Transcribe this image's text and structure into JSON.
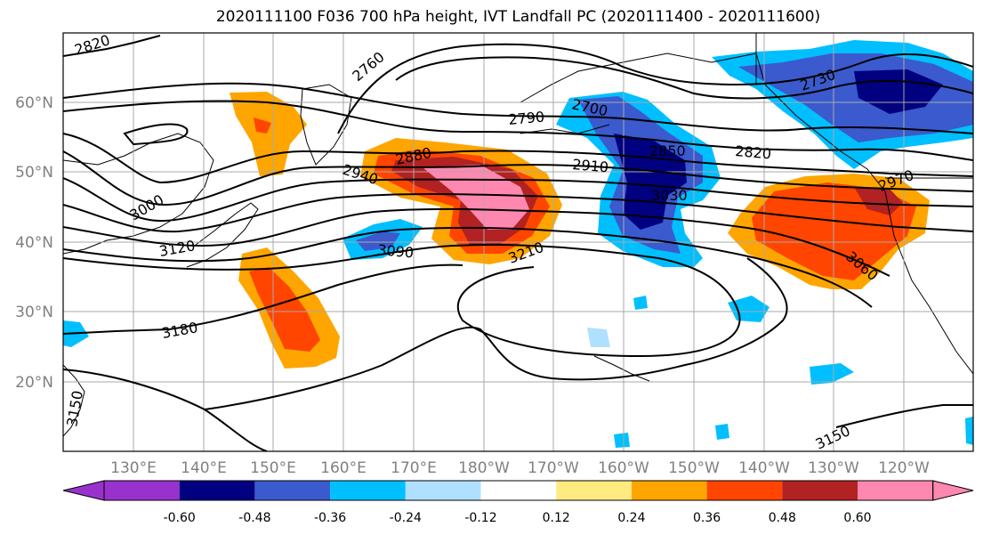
{
  "title": "2020111100 F036 700 hPa height, IVT Landfall PC (2020111400 - 2020111600)",
  "lon_labels": [
    "130°E",
    "140°E",
    "150°E",
    "160°E",
    "170°E",
    "180°W",
    "170°W",
    "160°W",
    "150°W",
    "140°W",
    "130°W",
    "120°W"
  ],
  "lat_labels": [
    "60°N",
    "50°N",
    "40°N",
    "30°N",
    "20°N"
  ],
  "contour_labels": [
    "2820",
    "2760",
    "2730",
    "2700",
    "2790",
    "2880",
    "2850",
    "2820",
    "2940",
    "2910",
    "2970",
    "3000",
    "3030",
    "3120",
    "3090",
    "3210",
    "3060",
    "3180",
    "3150",
    "3150"
  ],
  "colorbar": {
    "colors": [
      "#9932cc",
      "#000080",
      "#3a5acd",
      "#00bfff",
      "#b0e0ff",
      "#ffffff",
      "#ffeb80",
      "#ffa500",
      "#ff4500",
      "#b22222",
      "#ff88b0"
    ],
    "tick_labels": [
      "-0.60",
      "-0.48",
      "-0.36",
      "-0.24",
      "-0.12",
      "0.12",
      "0.24",
      "0.36",
      "0.48",
      "0.60"
    ]
  },
  "legend_colors": {
    "neg_light": "#00bfff",
    "neg_mid": "#3a5acd",
    "neg_dark": "#000080",
    "pos_light": "#ffa500",
    "pos_mid": "#ff4500",
    "pos_dark": "#b22222",
    "pos_max": "#ff88b0"
  }
}
